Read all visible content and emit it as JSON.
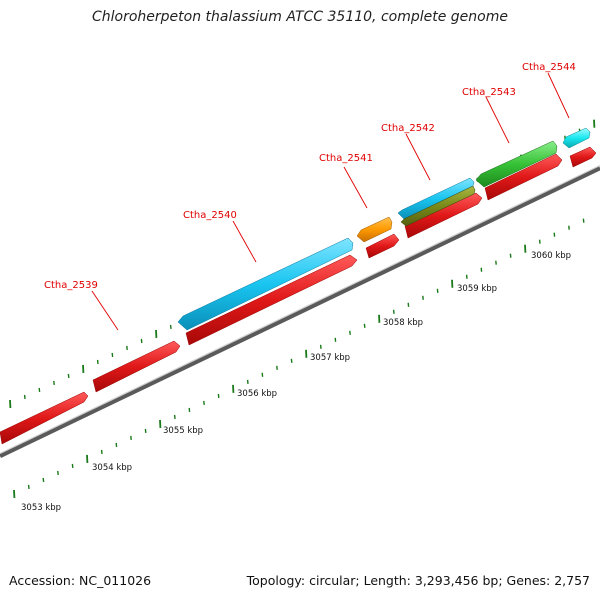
{
  "title": "Chloroherpeton thalassium ATCC 35110, complete genome",
  "footer": {
    "accession": "Accession: NC_011026",
    "info": "Topology: circular; Length: 3,293,456 bp; Genes: 2,757"
  },
  "colors": {
    "forward_gene": "#e01818",
    "cyan_gene": "#19c5f0",
    "orange_gene": "#ff9a00",
    "olive_gene": "#7a8a1a",
    "green_gene": "#36c236",
    "light_cyan_gene": "#1ae8f0",
    "label_red": "#e00000",
    "tick_green": "#1a7a1a",
    "backbone": "#888888"
  },
  "gene_labels": [
    "Ctha_2539",
    "Ctha_2540",
    "Ctha_2541",
    "Ctha_2542",
    "Ctha_2543",
    "Ctha_2544"
  ],
  "scale_labels": [
    "3053 kbp",
    "3054 kbp",
    "3055 kbp",
    "3056 kbp",
    "3057 kbp",
    "3058 kbp",
    "3059 kbp",
    "3060 kbp"
  ]
}
